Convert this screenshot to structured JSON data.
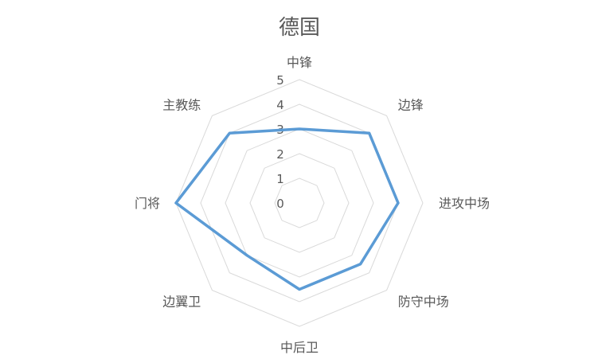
{
  "chart_data": {
    "type": "radar",
    "title": "德国",
    "categories": [
      "中锋",
      "边锋",
      "进攻中场",
      "防守中场",
      "中后卫",
      "边翼卫",
      "门将",
      "主教练"
    ],
    "series": [
      {
        "values": [
          3,
          4,
          4,
          3.5,
          3.5,
          3,
          5,
          4
        ],
        "color": "#5b9bd5"
      }
    ],
    "rlim": [
      0,
      5
    ],
    "ticks": [
      "0",
      "1",
      "2",
      "3",
      "4",
      "5"
    ],
    "grid": true,
    "legend": "none"
  }
}
